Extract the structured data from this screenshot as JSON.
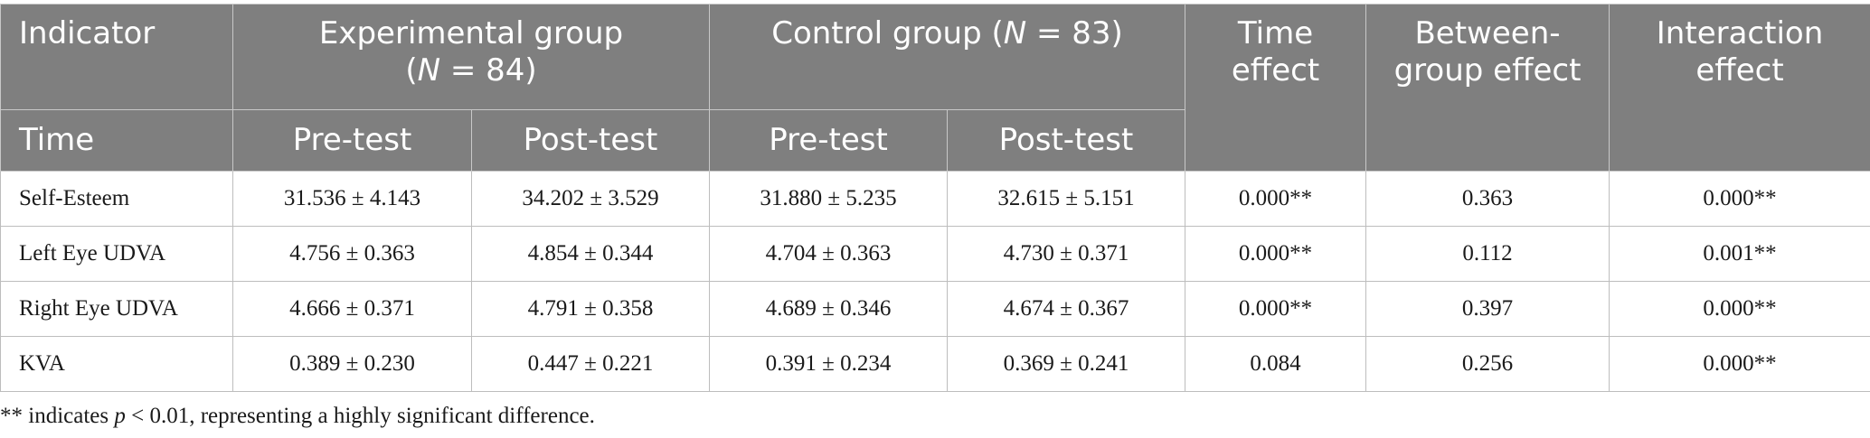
{
  "header": {
    "indicator": "Indicator",
    "time": "Time",
    "experimental_line1": "Experimental group",
    "experimental_n_open": "(",
    "experimental_n_var": "N",
    "experimental_n_rest": " = 84)",
    "control_prefix": "Control group (",
    "control_n_var": "N",
    "control_n_rest": " = 83)",
    "pre_test": "Pre-test",
    "post_test": "Post-test",
    "time_effect_line1": "Time",
    "time_effect_line2": "effect",
    "between_line1": "Between-",
    "between_line2": "group effect",
    "interaction_line1": "Interaction",
    "interaction_line2": "effect"
  },
  "rows": [
    {
      "indicator": "Self-Esteem",
      "exp_pre": "31.536 ± 4.143",
      "exp_post": "34.202 ± 3.529",
      "ctrl_pre": "31.880 ± 5.235",
      "ctrl_post": "32.615 ± 5.151",
      "time_effect": "0.000**",
      "between_effect": "0.363",
      "interaction_effect": "0.000**"
    },
    {
      "indicator": "Left Eye UDVA",
      "exp_pre": "4.756 ± 0.363",
      "exp_post": "4.854 ± 0.344",
      "ctrl_pre": "4.704 ± 0.363",
      "ctrl_post": "4.730 ± 0.371",
      "time_effect": "0.000**",
      "between_effect": "0.112",
      "interaction_effect": "0.001**"
    },
    {
      "indicator": "Right Eye UDVA",
      "exp_pre": "4.666 ± 0.371",
      "exp_post": "4.791 ± 0.358",
      "ctrl_pre": "4.689 ± 0.346",
      "ctrl_post": "4.674 ± 0.367",
      "time_effect": "0.000**",
      "between_effect": "0.397",
      "interaction_effect": "0.000**"
    },
    {
      "indicator": "KVA",
      "exp_pre": "0.389 ± 0.230",
      "exp_post": "0.447 ± 0.221",
      "ctrl_pre": "0.391 ± 0.234",
      "ctrl_post": "0.369 ± 0.241",
      "time_effect": "0.084",
      "between_effect": "0.256",
      "interaction_effect": "0.000**"
    }
  ],
  "footnote": {
    "prefix": "** indicates ",
    "p_var": "p",
    "suffix": " < 0.01, representing a highly significant difference."
  },
  "colors": {
    "header_bg": "#7f7f7f",
    "header_text": "#ffffff",
    "border": "#bdbdbd"
  }
}
